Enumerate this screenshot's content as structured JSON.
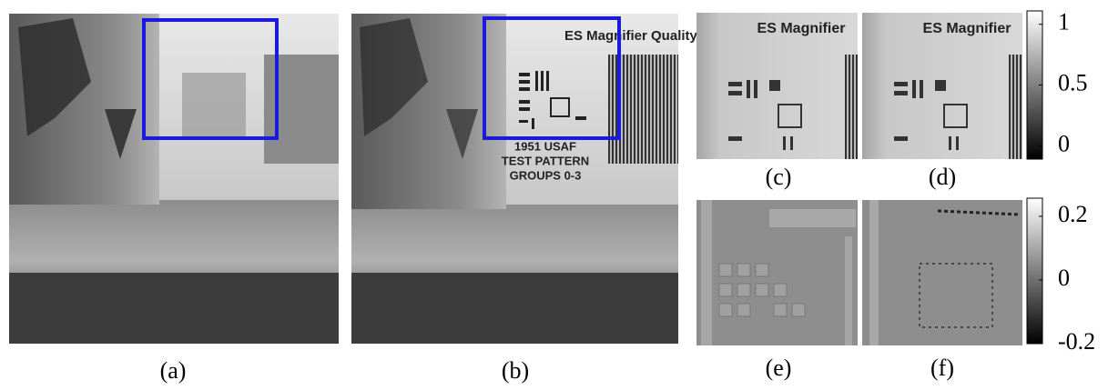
{
  "captions": [
    "(a)",
    "(b)",
    "(c)",
    "(d)",
    "(e)",
    "(f)"
  ],
  "panel_texts": {
    "b_header": "ES Magnifier Quality Re",
    "b_label": [
      "1951 USAF",
      "TEST PATTERN",
      "GROUPS 0-3"
    ],
    "crop_header": "ES Magnifier"
  },
  "colorbars": [
    {
      "lim": [
        -0.11,
        1.11
      ],
      "ticks": [
        1,
        0.5,
        0
      ]
    },
    {
      "lim": [
        -0.2,
        0.257
      ],
      "ticks": [
        0.2,
        0,
        -0.2
      ]
    }
  ]
}
